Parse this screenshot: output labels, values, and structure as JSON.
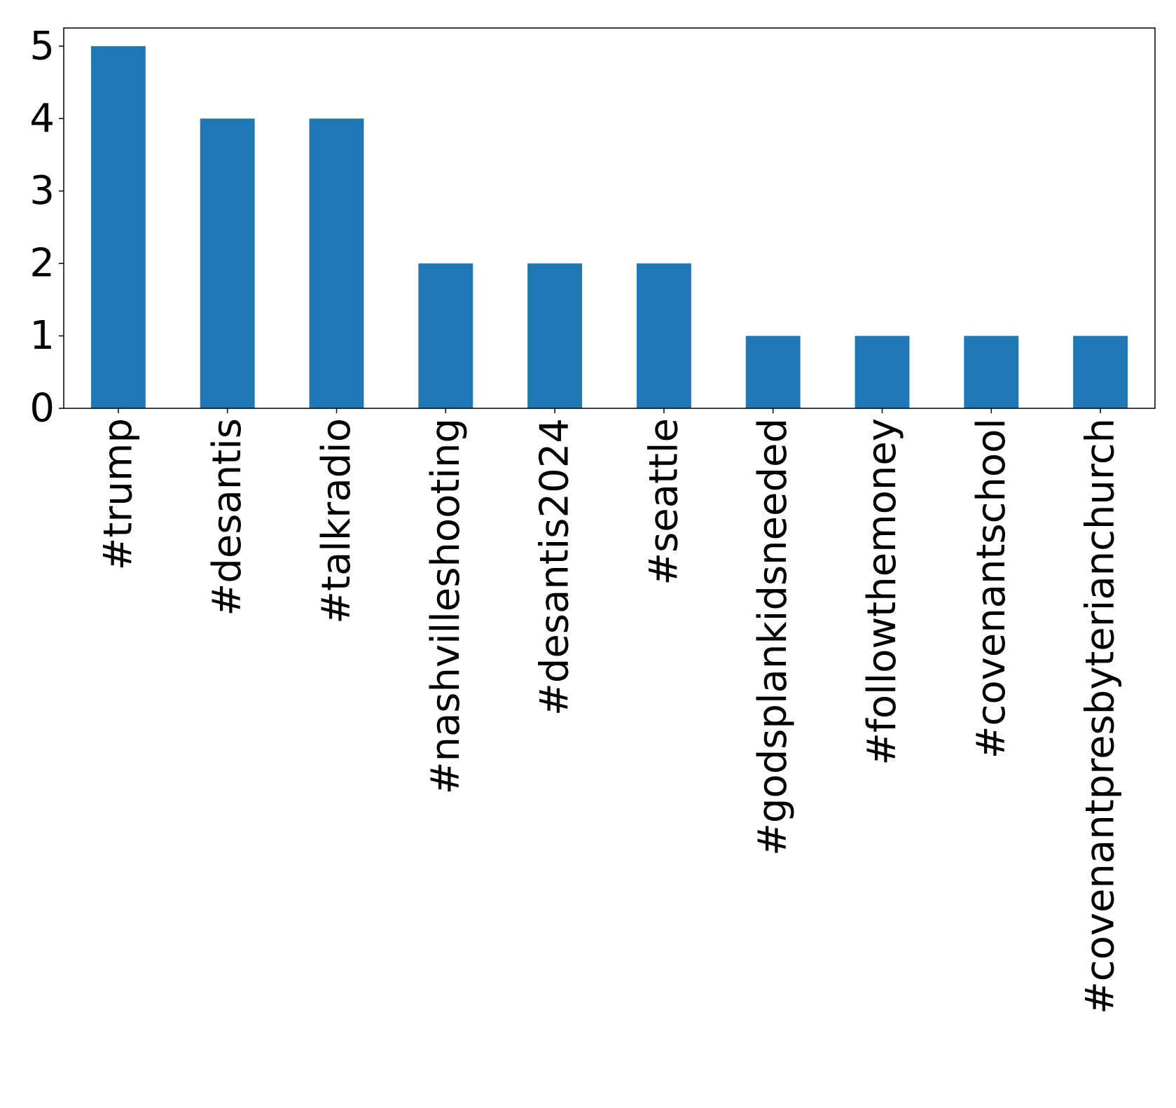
{
  "chart_data": {
    "type": "bar",
    "categories": [
      "#trump",
      "#desantis",
      "#talkradio",
      "#nashvilleshooting",
      "#desantis2024",
      "#seattle",
      "#godsplankidsneeded",
      "#followthemoney",
      "#covenantschool",
      "#covenantpresbyterianchurch"
    ],
    "values": [
      5,
      4,
      4,
      2,
      2,
      2,
      1,
      1,
      1,
      1
    ],
    "title": "",
    "xlabel": "",
    "ylabel": "",
    "ylim": [
      0,
      5.25
    ],
    "yticks": [
      "0",
      "1",
      "2",
      "3",
      "4",
      "5"
    ],
    "grid": false,
    "legend": "none",
    "bar_color": "#1f77b4"
  }
}
